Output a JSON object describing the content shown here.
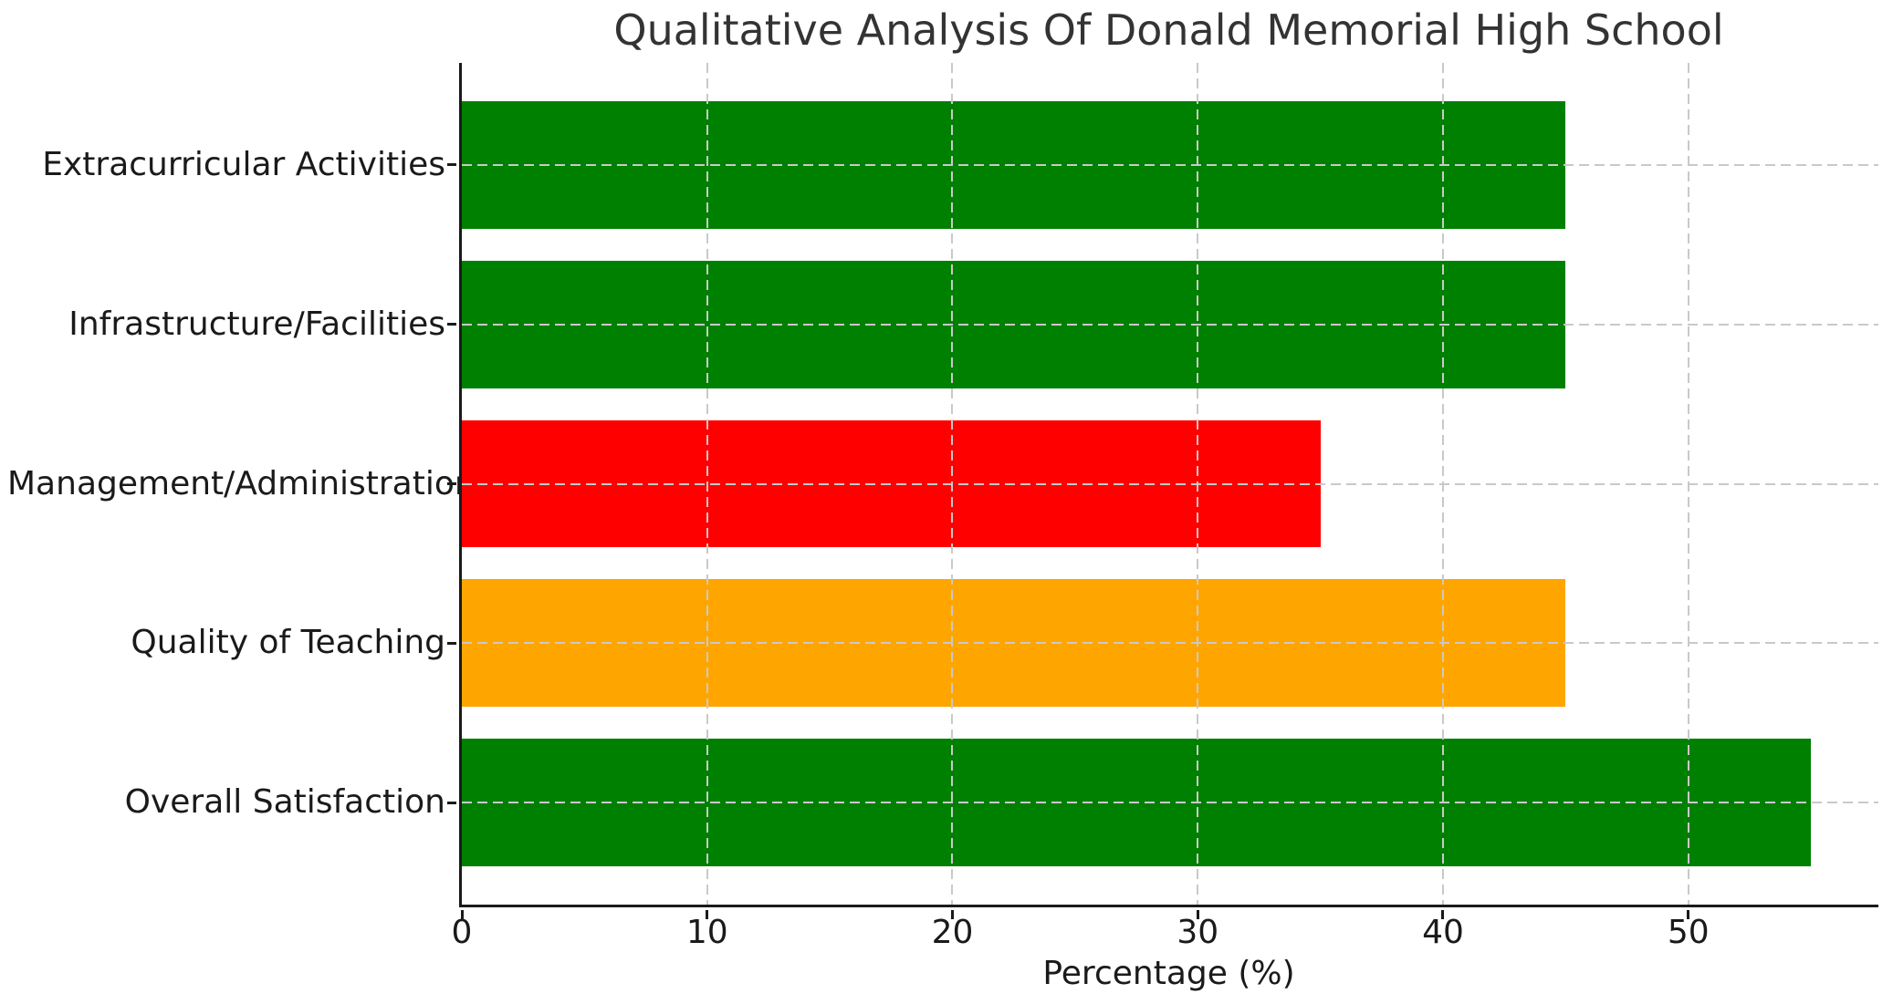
{
  "chart_data": {
    "type": "bar",
    "orientation": "horizontal",
    "title": "Qualitative Analysis Of Donald Memorial High School",
    "xlabel": "Percentage (%)",
    "ylabel": "",
    "categories": [
      "Extracurricular Activities",
      "Infrastructure/Facilities",
      "Management/Administration",
      "Quality of Teaching",
      "Overall Satisfaction"
    ],
    "values": [
      45,
      45,
      35,
      45,
      55
    ],
    "bar_colors": [
      "#008000",
      "#008000",
      "#ff0000",
      "#ffa500",
      "#008000"
    ],
    "xticks": [
      0,
      10,
      20,
      30,
      40,
      50
    ],
    "xlim": [
      0,
      57.75
    ],
    "grid": "dashed gridlines on both axes, drawn above bars",
    "legend": "none"
  },
  "colors": {
    "background": "#ffffff",
    "spine": "#1a1a1a",
    "grid": "#c9c9c9",
    "text": "#1a1a1a",
    "title": "#333333"
  }
}
